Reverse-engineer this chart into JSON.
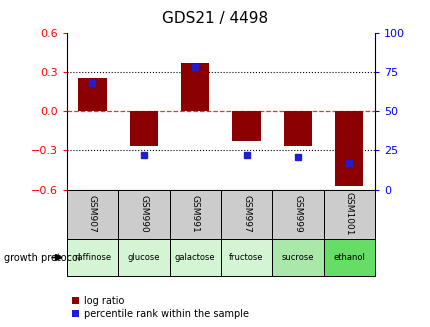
{
  "title": "GDS21 / 4498",
  "samples": [
    "GSM907",
    "GSM990",
    "GSM991",
    "GSM997",
    "GSM999",
    "GSM1001"
  ],
  "conditions": [
    "raffinose",
    "glucose",
    "galactose",
    "fructose",
    "sucrose",
    "ethanol"
  ],
  "log_ratios": [
    0.25,
    -0.27,
    0.37,
    -0.23,
    -0.27,
    -0.57
  ],
  "percentile_ranks": [
    68,
    22,
    78,
    22,
    21,
    17
  ],
  "ylim": [
    -0.6,
    0.6
  ],
  "yticks": [
    -0.6,
    -0.3,
    0,
    0.3,
    0.6
  ],
  "right_ylim": [
    0,
    100
  ],
  "right_yticks": [
    0,
    25,
    50,
    75,
    100
  ],
  "bar_color": "#8B0000",
  "percentile_color": "#1F1FCC",
  "zero_line_color": "#EE3333",
  "grid_color": "#000000",
  "title_fontsize": 11,
  "bar_width": 0.55,
  "condition_colors": [
    "#d4f5d4",
    "#d4f5d4",
    "#d4f5d4",
    "#d4f5d4",
    "#aae8aa",
    "#66dd66"
  ],
  "sample_bg_color": "#cccccc"
}
